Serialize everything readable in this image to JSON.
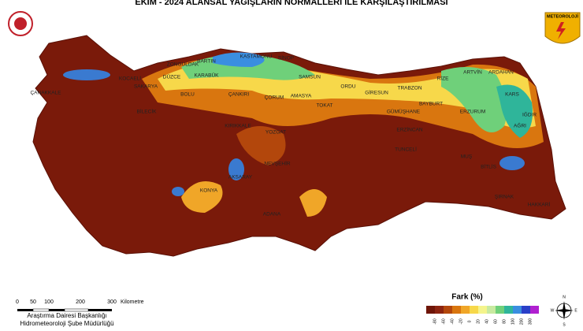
{
  "header": {
    "title": "EKİM - 2024 ALANSAL YAĞIŞLARIN NORMALLERİ İLE KARŞILAŞTIRILMASI",
    "logo": "METEOROLOJİ"
  },
  "cities": [
    "KOCAELİ",
    "SAKARYA",
    "DÜZCE",
    "BOLU",
    "ZONGULDAK",
    "BARTIN",
    "KARABÜK",
    "KASTAMONU",
    "SİNOP",
    "SAMSUN",
    "AMASYA",
    "ÇORUM",
    "ÇANKIRI",
    "ORDU",
    "GİRESUN",
    "TRABZON",
    "RİZE",
    "ARTVİN",
    "ARDAHAN",
    "KARS",
    "IĞDIR",
    "AĞRI",
    "ERZURUM",
    "BAYBURT",
    "GÜMÜŞHANE",
    "ERZİNCAN",
    "TUNCELİ",
    "MUŞ",
    "BİTLİS",
    "ŞIRNAK",
    "HAKKARİ",
    "BİLECİK",
    "KIRIKKALE",
    "YOZGAT",
    "TOKAT",
    "NEVŞEHİR",
    "AKSARAY",
    "KONYA",
    "ADANA",
    "ÇANAKKALE"
  ],
  "scale": {
    "labels": [
      "0",
      "50",
      "100",
      "200",
      "300"
    ],
    "unit": "Kilometre"
  },
  "footer": {
    "line1": "Araştırma Dairesi Başkanlığı",
    "line2": "Hidrometeoroloji Şube Müdürlüğü"
  },
  "compass": [
    "N",
    "E",
    "W",
    "S"
  ],
  "legend": {
    "title": "Fark (%)",
    "labels": [
      "-80",
      "-60",
      "-40",
      "-20",
      "0",
      "20",
      "40",
      "60",
      "80",
      "100",
      "200",
      "300"
    ],
    "colors": [
      "#6e1508",
      "#8c2410",
      "#b3470c",
      "#d9760f",
      "#f0a628",
      "#f7d84a",
      "#f4f48c",
      "#c8eaa0",
      "#6fd07a",
      "#2fb59a",
      "#3a8ee0",
      "#2a3fc8",
      "#b020d0"
    ]
  }
}
